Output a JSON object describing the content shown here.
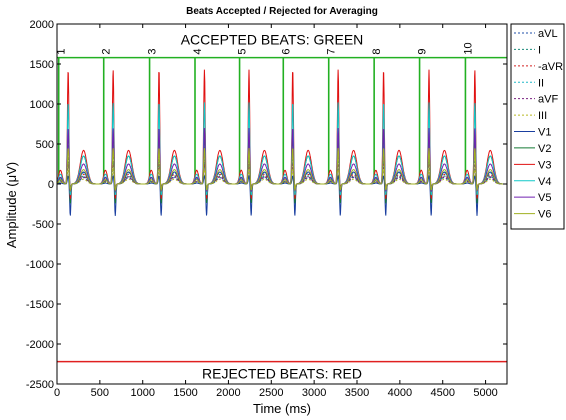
{
  "chart_data": {
    "type": "line",
    "title": "Beats Accepted / Rejected for Averaging",
    "xlabel": "Time (ms)",
    "ylabel": "Amplitude (μV)",
    "xlim": [
      0,
      5250
    ],
    "ylim": [
      -2500,
      2000
    ],
    "xticks": [
      0,
      500,
      1000,
      1500,
      2000,
      2500,
      3000,
      3500,
      4000,
      4500,
      5000
    ],
    "yticks": [
      2000,
      1500,
      1000,
      500,
      0,
      -500,
      -1000,
      -1500,
      -2000,
      -2500
    ],
    "grid": false,
    "legend_position": "right",
    "annotations": {
      "accepted": "ACCEPTED BEATS: GREEN",
      "rejected": "REJECTED BEATS: RED"
    },
    "accepted_level": 1580,
    "rejected_level": -2220,
    "beats": [
      {
        "label": "1",
        "time": 20
      },
      {
        "label": "2",
        "time": 545
      },
      {
        "label": "3",
        "time": 1080
      },
      {
        "label": "4",
        "time": 1610
      },
      {
        "label": "5",
        "time": 2130
      },
      {
        "label": "6",
        "time": 2640
      },
      {
        "label": "7",
        "time": 3170
      },
      {
        "label": "8",
        "time": 3700
      },
      {
        "label": "9",
        "time": 4230
      },
      {
        "label": "10",
        "time": 4765
      }
    ],
    "series": [
      {
        "name": "aVL",
        "color": "#1f4fa8",
        "dash": "dotted",
        "r": 280,
        "s": -80,
        "t": 80
      },
      {
        "name": "I",
        "color": "#1a8a7a",
        "dash": "dotted",
        "r": 350,
        "s": -60,
        "t": 100
      },
      {
        "name": "-aVR",
        "color": "#d42020",
        "dash": "dotted",
        "r": 450,
        "s": -40,
        "t": 120
      },
      {
        "name": "II",
        "color": "#20b8c8",
        "dash": "dotted",
        "r": 500,
        "s": -60,
        "t": 140
      },
      {
        "name": "aVF",
        "color": "#7a2080",
        "dash": "dotted",
        "r": 250,
        "s": -50,
        "t": 90
      },
      {
        "name": "III",
        "color": "#b8b820",
        "dash": "dotted",
        "r": 180,
        "s": -40,
        "t": 60
      },
      {
        "name": "V1",
        "color": "#1a3fa0",
        "dash": "solid",
        "r": 100,
        "s": -400,
        "t": 150
      },
      {
        "name": "V2",
        "color": "#157a35",
        "dash": "solid",
        "r": 650,
        "s": -250,
        "t": 350
      },
      {
        "name": "V3",
        "color": "#e01010",
        "dash": "solid",
        "r": 1430,
        "s": -200,
        "t": 420
      },
      {
        "name": "V4",
        "color": "#10c8c8",
        "dash": "solid",
        "r": 1020,
        "s": -150,
        "t": 350
      },
      {
        "name": "V5",
        "color": "#7020b0",
        "dash": "solid",
        "r": 700,
        "s": -100,
        "t": 250
      },
      {
        "name": "V6",
        "color": "#a0b020",
        "dash": "solid",
        "r": 450,
        "s": -80,
        "t": 180
      }
    ]
  }
}
